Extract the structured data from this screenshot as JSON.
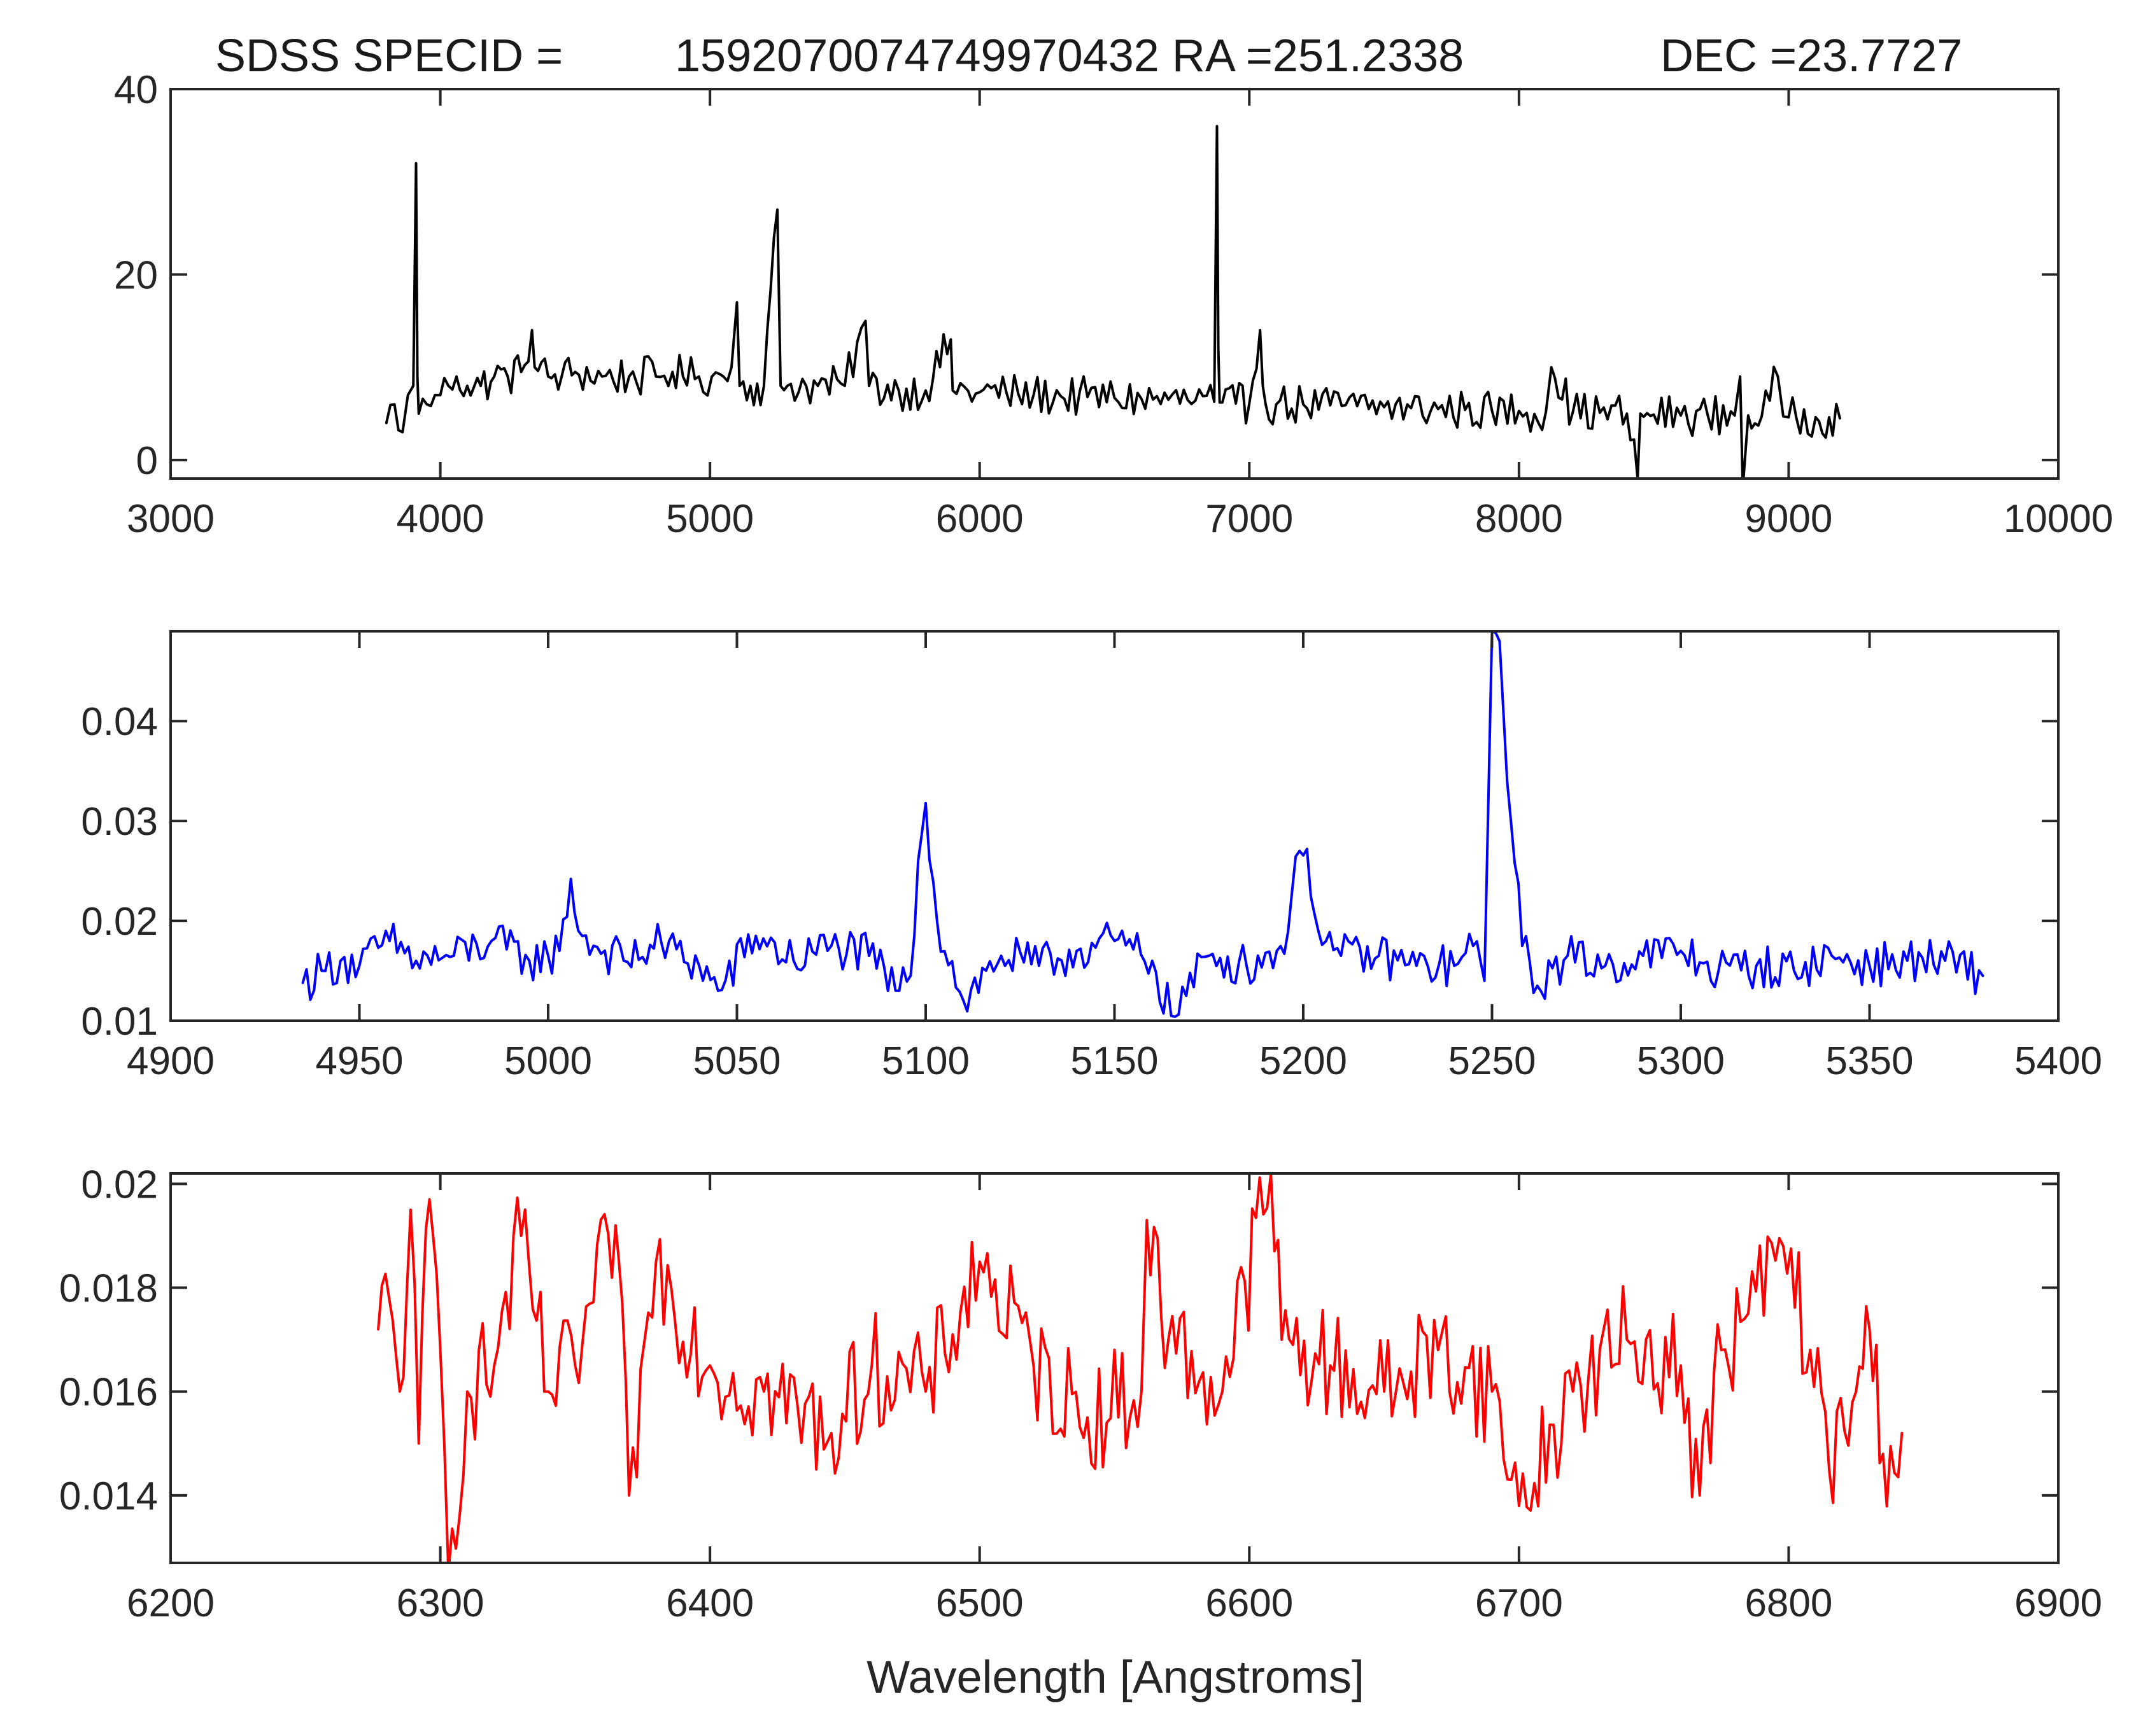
{
  "figure": {
    "title_parts": [
      "SDSS SPECID =",
      "1592070074749970432 RA =251.2338",
      "DEC =23.7727"
    ],
    "xlabel": "Wavelength [Angstroms]"
  },
  "chart_data": [
    {
      "type": "line",
      "name": "full-spectrum",
      "color": "#000000",
      "xlim": [
        3000,
        10000
      ],
      "ylim": [
        -2,
        40
      ],
      "xticks": [
        3000,
        4000,
        5000,
        6000,
        7000,
        8000,
        9000,
        10000
      ],
      "yticks": [
        0,
        20,
        40
      ],
      "xtick_labels": [
        "3000",
        "4000",
        "5000",
        "6000",
        "7000",
        "8000",
        "9000",
        "10000"
      ],
      "ytick_labels": [
        "0",
        "20",
        "40"
      ],
      "x": [
        3800,
        3830,
        3860,
        3880,
        3900,
        3910,
        3915,
        3920,
        3950,
        3980,
        4000,
        4030,
        4060,
        4100,
        4150,
        4200,
        4250,
        4300,
        4340,
        4350,
        4400,
        4450,
        4500,
        4600,
        4700,
        4800,
        4861,
        4900,
        4959,
        5007,
        5050,
        5080,
        5100,
        5110,
        5150,
        5200,
        5250,
        5262,
        5300,
        5400,
        5500,
        5577,
        5590,
        5700,
        5800,
        5893,
        5900,
        6000,
        6100,
        6200,
        6300,
        6400,
        6500,
        6600,
        6700,
        6800,
        6870,
        6880,
        6885,
        6890,
        6900,
        6950,
        7000,
        7040,
        7050,
        7060,
        7100,
        7200,
        7300,
        7400,
        7500,
        7600,
        7700,
        7800,
        7900,
        8000,
        8100,
        8120,
        8200,
        8300,
        8400,
        8440,
        8450,
        8500,
        8600,
        8700,
        8800,
        8820,
        8830,
        8850,
        8900,
        8960,
        8980,
        9000,
        9100,
        9150,
        9190
      ],
      "y": [
        4,
        6,
        3,
        7,
        8,
        32,
        9,
        5,
        6,
        7,
        7,
        8,
        9,
        8,
        8,
        9,
        9,
        9.5,
        14,
        10,
        9,
        9,
        9.5,
        9,
        9,
        9,
        9.5,
        9,
        9,
        9,
        9,
        10,
        17,
        8,
        8,
        8,
        27,
        8,
        8.2,
        8,
        8,
        15,
        8,
        7.5,
        7.5,
        13,
        7.5,
        7.3,
        7.2,
        7,
        6.9,
        6.8,
        6.7,
        6.6,
        6.5,
        6.4,
        6.3,
        36,
        12,
        6.2,
        6.2,
        6.1,
        6.1,
        14,
        8,
        6.1,
        6,
        6,
        5.9,
        5.8,
        5.7,
        5.6,
        5.5,
        5.4,
        5.3,
        5.3,
        5.2,
        10,
        5.2,
        5.1,
        5,
        -2,
        5,
        4.9,
        4.8,
        4.8,
        4.8,
        9,
        -3,
        4.8,
        4.7,
        9,
        4.7,
        4.6,
        4.6,
        4.6,
        4.5
      ],
      "noise": 2.2
    },
    {
      "type": "line",
      "name": "zoom-5000",
      "color": "#0000ff",
      "xlim": [
        4900,
        5400
      ],
      "ylim": [
        0.01,
        0.049
      ],
      "xticks": [
        4900,
        4950,
        5000,
        5050,
        5100,
        5150,
        5200,
        5250,
        5300,
        5350,
        5400
      ],
      "yticks": [
        0.01,
        0.02,
        0.03,
        0.04
      ],
      "xtick_labels": [
        "4900",
        "4950",
        "5000",
        "5050",
        "5100",
        "5150",
        "5200",
        "5250",
        "5300",
        "5350",
        "5400"
      ],
      "ytick_labels": [
        "0.01",
        "0.02",
        "0.03",
        "0.04"
      ],
      "x": [
        4935,
        4940,
        4945,
        4950,
        4958,
        4965,
        4975,
        4985,
        4995,
        5000,
        5003,
        5006,
        5008,
        5012,
        5020,
        5030,
        5040,
        5045,
        5055,
        5065,
        5075,
        5085,
        5093,
        5096,
        5098,
        5100,
        5103,
        5110,
        5120,
        5130,
        5140,
        5150,
        5160,
        5165,
        5175,
        5185,
        5193,
        5196,
        5199,
        5201,
        5204,
        5210,
        5220,
        5230,
        5240,
        5245,
        5248,
        5250,
        5252,
        5255,
        5258,
        5262,
        5270,
        5280,
        5290,
        5300,
        5310,
        5320,
        5330,
        5340,
        5350,
        5360,
        5370,
        5380
      ],
      "y": [
        0.0138,
        0.015,
        0.016,
        0.0155,
        0.018,
        0.016,
        0.0165,
        0.018,
        0.016,
        0.0165,
        0.017,
        0.0242,
        0.019,
        0.0175,
        0.016,
        0.0178,
        0.0155,
        0.013,
        0.0185,
        0.016,
        0.0175,
        0.0165,
        0.013,
        0.0145,
        0.026,
        0.0318,
        0.02,
        0.012,
        0.0165,
        0.0155,
        0.017,
        0.018,
        0.016,
        0.0105,
        0.0165,
        0.0155,
        0.017,
        0.019,
        0.027,
        0.0272,
        0.019,
        0.0165,
        0.0165,
        0.0155,
        0.0155,
        0.0175,
        0.014,
        0.049,
        0.048,
        0.03,
        0.0175,
        0.0135,
        0.0165,
        0.0155,
        0.0165,
        0.017,
        0.015,
        0.0155,
        0.015,
        0.0165,
        0.0155,
        0.016,
        0.016,
        0.0145
      ],
      "noise": 0.0022
    },
    {
      "type": "line",
      "name": "zoom-6600",
      "color": "#ff0000",
      "xlim": [
        6200,
        6900
      ],
      "ylim": [
        0.0127,
        0.0202
      ],
      "xticks": [
        6200,
        6300,
        6400,
        6500,
        6600,
        6700,
        6800,
        6900
      ],
      "yticks": [
        0.014,
        0.016,
        0.018,
        0.02
      ],
      "xtick_labels": [
        "6200",
        "6300",
        "6400",
        "6500",
        "6600",
        "6700",
        "6800",
        "6900"
      ],
      "ytick_labels": [
        "0.014",
        "0.016",
        "0.018",
        "0.02"
      ],
      "x": [
        6277,
        6281,
        6285,
        6289,
        6292,
        6296,
        6300,
        6303,
        6310,
        6320,
        6330,
        6340,
        6350,
        6365,
        6370,
        6380,
        6400,
        6420,
        6445,
        6460,
        6480,
        6500,
        6520,
        6540,
        6560,
        6562,
        6570,
        6590,
        6608,
        6612,
        6630,
        6650,
        6670,
        6690,
        6700,
        6720,
        6740,
        6760,
        6767,
        6775,
        6785,
        6798,
        6808,
        6815,
        6825,
        6830,
        6835,
        6842
      ],
      "y": [
        0.0172,
        0.0178,
        0.016,
        0.0195,
        0.015,
        0.0197,
        0.0168,
        0.0125,
        0.016,
        0.0165,
        0.019,
        0.016,
        0.0165,
        0.0192,
        0.014,
        0.0185,
        0.0165,
        0.016,
        0.0152,
        0.0165,
        0.016,
        0.0185,
        0.0165,
        0.0155,
        0.016,
        0.0193,
        0.017,
        0.016,
        0.0202,
        0.017,
        0.0165,
        0.016,
        0.0168,
        0.016,
        0.0138,
        0.016,
        0.017,
        0.0165,
        0.014,
        0.0168,
        0.0175,
        0.0188,
        0.0168,
        0.0145,
        0.016,
        0.0172,
        0.0148,
        0.0152
      ],
      "noise": 0.0011
    }
  ]
}
